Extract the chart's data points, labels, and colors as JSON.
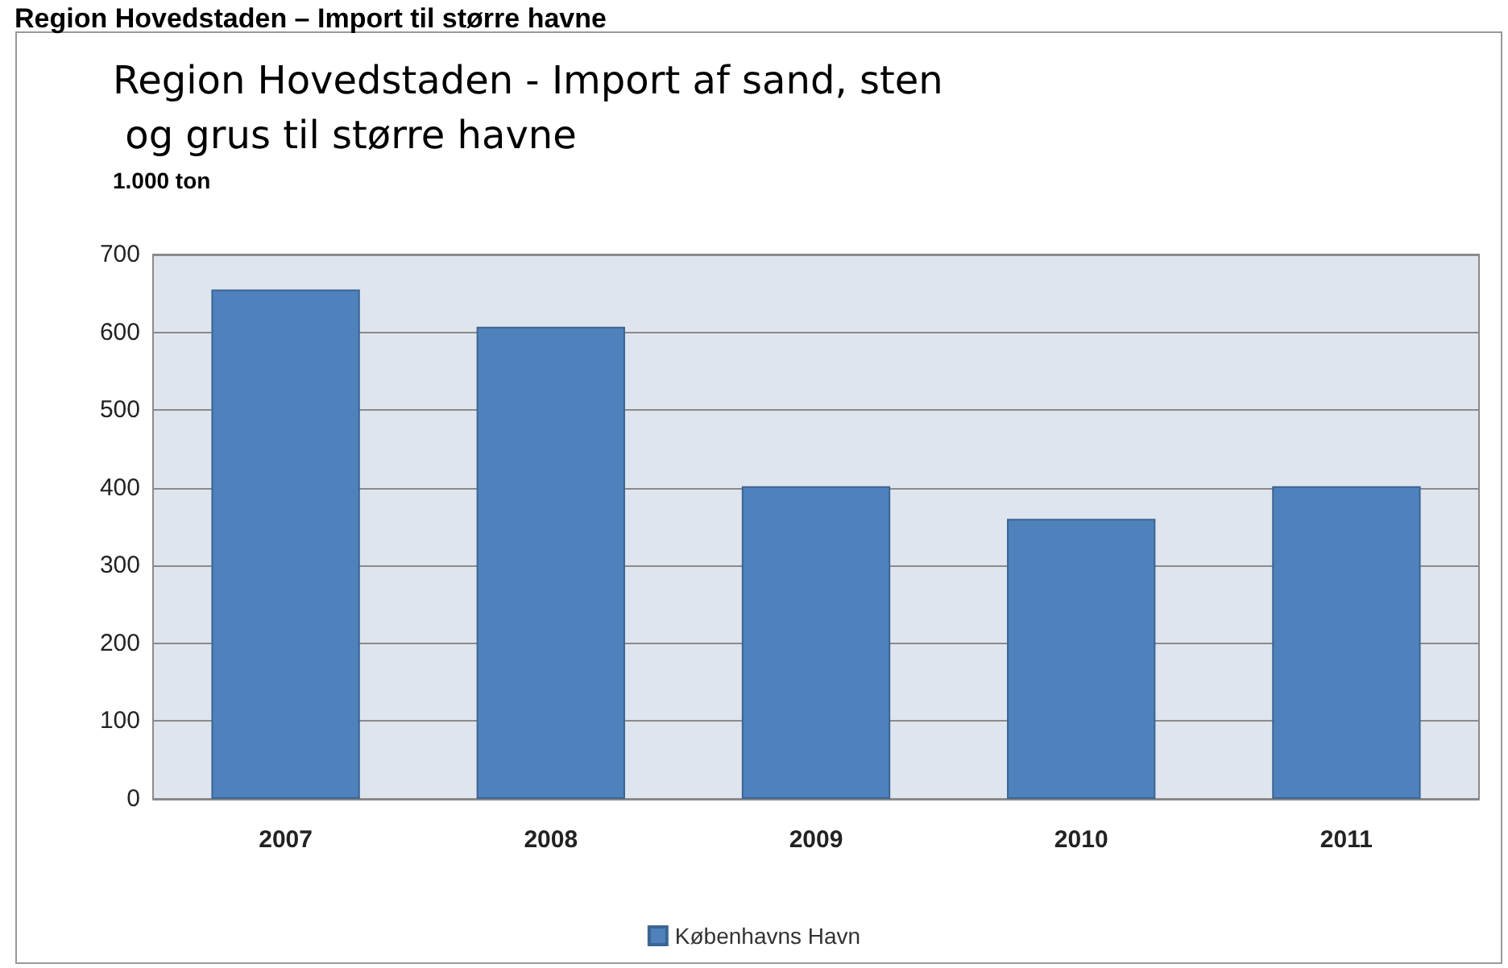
{
  "chart_data": {
    "type": "bar",
    "title": "Region Hovedstaden – Import til større havne",
    "subtitle": "Region Hovedstaden - Import af sand, sten og grus til større havne",
    "ylabel": "1.000 ton",
    "categories": [
      "2007",
      "2008",
      "2009",
      "2010",
      "2011"
    ],
    "series": [
      {
        "name": "Københavns Havn",
        "color": "#4f81bd",
        "values": [
          655,
          607,
          402,
          360,
          402
        ]
      }
    ],
    "ylim": [
      0,
      700
    ],
    "yticks": [
      0,
      100,
      200,
      300,
      400,
      500,
      600,
      700
    ],
    "grid": "y",
    "legend": "bottom"
  }
}
